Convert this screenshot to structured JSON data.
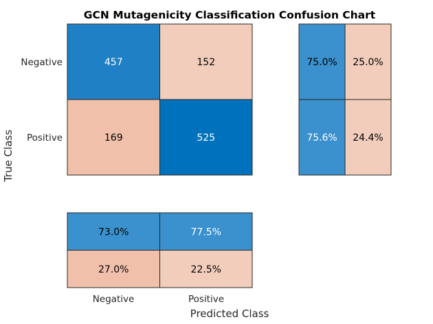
{
  "chart_data": {
    "type": "heatmap",
    "title": "GCN Mutagenicity Classification Confusion Chart",
    "xlabel": "Predicted Class",
    "ylabel": "True Class",
    "classes": [
      "Negative",
      "Positive"
    ],
    "matrix": [
      [
        457,
        152
      ],
      [
        169,
        525
      ]
    ],
    "row_summary": [
      [
        "75.0%",
        "25.0%"
      ],
      [
        "75.6%",
        "24.4%"
      ]
    ],
    "column_summary": [
      [
        "73.0%",
        "77.5%"
      ],
      [
        "27.0%",
        "22.5%"
      ]
    ],
    "colors": {
      "correct_strong": "#0072bd",
      "correct_mid": "#1f80c6",
      "correct_summary": "#3b91cd",
      "incorrect_base": "#f0c0ab",
      "incorrect_light": "#f2cdbc",
      "grid": "#262626",
      "text_light": "#ffffff",
      "text_dark": "#000000"
    }
  }
}
